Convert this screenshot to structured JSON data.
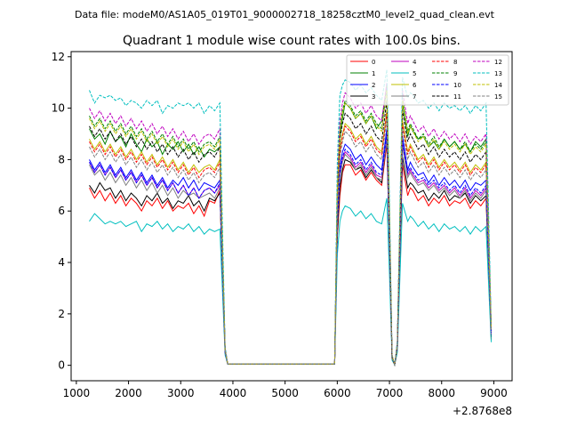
{
  "figure": {
    "suptitle": "Data file: modeM0/AS1A05_019T01_9000002718_18258cztM0_level2_quad_clean.evt",
    "title": "Quadrant 1 module wise count rates with 100.0s bins."
  },
  "chart_data": {
    "type": "line",
    "title": "Quadrant 1 module wise count rates with 100.0s bins.",
    "xlabel": "",
    "ylabel": "",
    "x_offset_label": "+2.8768e8",
    "xlim": [
      900,
      9350
    ],
    "ylim": [
      -0.6,
      12.2
    ],
    "xticks": [
      1000,
      2000,
      3000,
      4000,
      5000,
      6000,
      7000,
      8000,
      9000
    ],
    "yticks": [
      0,
      2,
      4,
      6,
      8,
      10,
      12
    ],
    "grid": false,
    "legend_position": "top-right",
    "x": [
      1250,
      1350,
      1450,
      1550,
      1650,
      1750,
      1850,
      1950,
      2050,
      2150,
      2250,
      2350,
      2450,
      2550,
      2650,
      2750,
      2850,
      2950,
      3050,
      3150,
      3250,
      3350,
      3450,
      3550,
      3650,
      3750,
      3800,
      3850,
      3900,
      3950,
      4000,
      5950,
      6000,
      6050,
      6100,
      6150,
      6250,
      6350,
      6450,
      6550,
      6650,
      6750,
      6850,
      6950,
      7000,
      7050,
      7100,
      7150,
      7250,
      7350,
      7400,
      7450,
      7550,
      7650,
      7750,
      7850,
      7950,
      8050,
      8150,
      8250,
      8350,
      8450,
      8550,
      8650,
      8750,
      8850,
      8950
    ],
    "series": [
      {
        "name": "0",
        "color": "#ff0000",
        "dash": "solid",
        "values": [
          6.9,
          6.5,
          6.8,
          6.4,
          6.7,
          6.3,
          6.6,
          6.2,
          6.5,
          6.3,
          6.0,
          6.4,
          6.2,
          6.5,
          6.1,
          6.4,
          6.0,
          6.2,
          6.1,
          6.3,
          5.9,
          6.2,
          5.8,
          6.4,
          6.3,
          6.8,
          3.5,
          0.5,
          0.05,
          0.05,
          0.05,
          0.05,
          5.0,
          6.6,
          7.5,
          7.8,
          7.8,
          7.4,
          7.6,
          7.2,
          7.5,
          7.2,
          7.0,
          8.6,
          4.5,
          0.3,
          0.02,
          0.6,
          7.8,
          6.6,
          6.9,
          6.8,
          6.4,
          6.6,
          6.2,
          6.5,
          6.3,
          6.6,
          6.2,
          6.4,
          6.3,
          6.5,
          6.1,
          6.4,
          6.2,
          6.5,
          1.0
        ]
      },
      {
        "name": "1",
        "color": "#008000",
        "dash": "solid",
        "values": [
          9.2,
          8.8,
          9.0,
          8.6,
          9.1,
          8.7,
          8.9,
          8.5,
          9.0,
          8.6,
          8.3,
          8.8,
          8.5,
          8.7,
          8.2,
          8.6,
          8.4,
          8.7,
          8.3,
          8.6,
          8.2,
          8.5,
          8.1,
          8.4,
          8.3,
          8.5,
          4.5,
          0.6,
          0.05,
          0.05,
          0.05,
          0.05,
          6.6,
          8.9,
          9.6,
          10.2,
          10.0,
          9.6,
          9.8,
          9.4,
          9.7,
          9.2,
          9.5,
          10.9,
          5.6,
          0.3,
          0.02,
          0.8,
          10.2,
          8.9,
          9.3,
          9.1,
          8.8,
          8.9,
          8.5,
          8.7,
          8.4,
          8.8,
          8.5,
          8.7,
          8.4,
          8.6,
          8.3,
          8.7,
          8.5,
          8.8,
          1.4
        ]
      },
      {
        "name": "2",
        "color": "#0000ff",
        "dash": "solid",
        "values": [
          8.0,
          7.6,
          7.9,
          7.5,
          7.8,
          7.4,
          7.7,
          7.3,
          7.6,
          7.2,
          7.5,
          7.1,
          7.4,
          7.0,
          7.3,
          6.9,
          7.2,
          7.0,
          7.3,
          6.9,
          7.2,
          6.8,
          7.1,
          7.0,
          6.9,
          7.2,
          3.8,
          0.5,
          0.05,
          0.05,
          0.05,
          0.05,
          5.8,
          7.7,
          8.3,
          8.6,
          8.4,
          8.0,
          8.2,
          7.8,
          8.1,
          7.8,
          7.6,
          9.2,
          4.8,
          0.3,
          0.02,
          0.7,
          8.9,
          7.6,
          7.9,
          7.7,
          7.4,
          7.5,
          7.1,
          7.4,
          7.0,
          7.3,
          7.0,
          7.2,
          6.9,
          7.2,
          6.8,
          7.1,
          7.0,
          7.2,
          1.2
        ]
      },
      {
        "name": "3",
        "color": "#000000",
        "dash": "solid",
        "values": [
          7.0,
          6.7,
          7.1,
          6.8,
          6.9,
          6.5,
          6.8,
          6.4,
          6.7,
          6.5,
          6.2,
          6.6,
          6.4,
          6.7,
          6.3,
          6.5,
          6.1,
          6.4,
          6.3,
          6.6,
          6.2,
          6.4,
          6.0,
          6.5,
          6.4,
          6.7,
          3.6,
          0.5,
          0.05,
          0.05,
          0.05,
          0.05,
          5.2,
          6.9,
          7.6,
          8.0,
          7.9,
          7.6,
          7.7,
          7.3,
          7.6,
          7.3,
          7.1,
          8.8,
          4.6,
          0.3,
          0.02,
          0.6,
          8.1,
          6.9,
          7.1,
          7.0,
          6.7,
          6.8,
          6.4,
          6.7,
          6.5,
          6.8,
          6.4,
          6.6,
          6.5,
          6.7,
          6.3,
          6.6,
          6.4,
          6.6,
          1.1
        ]
      },
      {
        "name": "4",
        "color": "#bf00bf",
        "dash": "solid",
        "values": [
          7.9,
          7.5,
          7.8,
          7.4,
          7.7,
          7.3,
          7.6,
          7.2,
          7.5,
          7.1,
          7.4,
          7.0,
          7.3,
          6.9,
          7.2,
          6.8,
          7.1,
          6.7,
          7.0,
          6.6,
          6.9,
          6.5,
          6.8,
          6.9,
          6.7,
          7.0,
          3.7,
          0.5,
          0.05,
          0.05,
          0.05,
          0.05,
          5.6,
          7.4,
          8.0,
          8.3,
          8.1,
          7.7,
          7.9,
          7.5,
          7.8,
          7.4,
          7.3,
          8.9,
          4.7,
          0.3,
          0.02,
          0.7,
          8.6,
          7.4,
          7.6,
          7.4,
          7.1,
          7.2,
          6.9,
          7.1,
          6.8,
          7.0,
          6.7,
          6.9,
          6.6,
          6.9,
          6.5,
          6.8,
          6.6,
          6.9,
          1.2
        ]
      },
      {
        "name": "5",
        "color": "#00bfbf",
        "dash": "solid",
        "values": [
          5.6,
          5.9,
          5.7,
          5.5,
          5.6,
          5.5,
          5.6,
          5.4,
          5.5,
          5.6,
          5.2,
          5.5,
          5.4,
          5.6,
          5.3,
          5.5,
          5.2,
          5.4,
          5.3,
          5.5,
          5.2,
          5.4,
          5.1,
          5.3,
          5.2,
          5.3,
          2.9,
          0.4,
          0.05,
          0.05,
          0.05,
          0.05,
          4.3,
          5.6,
          6.0,
          6.2,
          6.1,
          5.8,
          6.0,
          5.7,
          5.9,
          5.6,
          5.5,
          6.5,
          3.5,
          0.2,
          0.02,
          0.5,
          6.3,
          5.6,
          5.8,
          5.7,
          5.4,
          5.6,
          5.3,
          5.5,
          5.2,
          5.5,
          5.3,
          5.4,
          5.2,
          5.4,
          5.1,
          5.4,
          5.2,
          5.4,
          0.9
        ]
      },
      {
        "name": "6",
        "color": "#bfbf00",
        "dash": "solid",
        "values": [
          8.8,
          8.4,
          8.7,
          8.3,
          8.6,
          8.2,
          8.5,
          8.1,
          8.4,
          8.0,
          8.3,
          7.9,
          8.2,
          7.8,
          8.1,
          7.7,
          8.0,
          7.6,
          7.9,
          7.5,
          7.8,
          7.5,
          7.7,
          7.8,
          7.6,
          8.0,
          4.2,
          0.6,
          0.05,
          0.05,
          0.05,
          0.05,
          6.3,
          8.4,
          9.0,
          9.4,
          9.2,
          8.8,
          9.0,
          8.6,
          8.9,
          8.5,
          8.3,
          9.9,
          5.2,
          0.3,
          0.02,
          0.7,
          9.5,
          8.3,
          8.6,
          8.4,
          8.0,
          8.2,
          7.8,
          8.1,
          7.7,
          8.0,
          7.7,
          7.9,
          7.6,
          7.9,
          7.5,
          7.8,
          7.6,
          7.9,
          1.3
        ]
      },
      {
        "name": "7",
        "color": "#808080",
        "dash": "solid",
        "values": [
          7.8,
          7.4,
          7.6,
          7.2,
          7.5,
          7.1,
          7.4,
          7.0,
          7.3,
          6.9,
          7.2,
          6.8,
          7.1,
          6.7,
          7.0,
          6.6,
          6.9,
          6.5,
          6.8,
          6.6,
          6.7,
          6.5,
          6.6,
          6.7,
          6.5,
          6.9,
          3.6,
          0.5,
          0.05,
          0.05,
          0.05,
          0.05,
          5.5,
          7.3,
          7.9,
          8.2,
          8.0,
          7.6,
          7.8,
          7.4,
          7.7,
          7.3,
          7.2,
          8.8,
          4.6,
          0.3,
          0.02,
          0.7,
          8.5,
          7.3,
          7.5,
          7.3,
          7.0,
          7.1,
          6.8,
          7.0,
          6.7,
          6.9,
          6.6,
          6.8,
          6.5,
          6.8,
          6.4,
          6.7,
          6.5,
          6.8,
          1.2
        ]
      },
      {
        "name": "8",
        "color": "#ff0000",
        "dash": "dashed",
        "values": [
          8.7,
          8.3,
          8.6,
          8.2,
          8.5,
          8.1,
          8.4,
          8.0,
          8.3,
          7.9,
          8.2,
          7.8,
          8.1,
          7.7,
          8.0,
          7.6,
          7.9,
          7.5,
          7.8,
          7.4,
          7.7,
          7.3,
          7.6,
          7.7,
          7.5,
          7.9,
          4.1,
          0.6,
          0.05,
          0.05,
          0.05,
          0.05,
          6.2,
          8.3,
          8.9,
          9.3,
          9.1,
          8.7,
          8.9,
          8.5,
          8.8,
          8.4,
          8.2,
          9.8,
          5.1,
          0.3,
          0.02,
          0.7,
          9.4,
          8.2,
          8.5,
          8.3,
          7.9,
          8.1,
          7.7,
          8.0,
          7.6,
          7.9,
          7.6,
          7.8,
          7.5,
          7.8,
          7.4,
          7.7,
          7.5,
          7.8,
          1.3
        ]
      },
      {
        "name": "9",
        "color": "#008000",
        "dash": "dashed",
        "values": [
          9.7,
          9.3,
          9.6,
          9.2,
          9.5,
          9.1,
          9.4,
          9.0,
          9.3,
          8.9,
          9.2,
          8.8,
          9.1,
          8.7,
          9.0,
          8.6,
          8.9,
          8.5,
          8.8,
          8.4,
          8.7,
          8.3,
          8.6,
          8.7,
          8.5,
          8.9,
          4.6,
          0.6,
          0.05,
          0.05,
          0.05,
          0.05,
          6.9,
          9.2,
          9.9,
          10.3,
          10.1,
          9.7,
          9.9,
          9.5,
          9.8,
          9.4,
          9.2,
          10.8,
          5.7,
          0.4,
          0.02,
          0.8,
          10.4,
          9.1,
          9.4,
          9.2,
          8.8,
          9.0,
          8.6,
          8.9,
          8.5,
          8.8,
          8.5,
          8.7,
          8.4,
          8.7,
          8.3,
          8.6,
          8.4,
          8.7,
          1.4
        ]
      },
      {
        "name": "10",
        "color": "#0000ff",
        "dash": "dashed",
        "values": [
          7.9,
          7.5,
          7.8,
          7.4,
          7.7,
          7.3,
          7.6,
          7.2,
          7.5,
          7.1,
          7.4,
          7.0,
          7.3,
          6.9,
          7.2,
          6.8,
          7.1,
          6.7,
          7.0,
          6.6,
          6.9,
          6.5,
          6.8,
          6.9,
          6.7,
          7.1,
          3.7,
          0.5,
          0.05,
          0.05,
          0.05,
          0.05,
          5.6,
          7.5,
          8.1,
          8.4,
          8.2,
          7.8,
          8.0,
          7.6,
          7.9,
          7.5,
          7.4,
          9.0,
          4.7,
          0.3,
          0.02,
          0.7,
          8.7,
          7.5,
          7.7,
          7.5,
          7.2,
          7.3,
          7.0,
          7.2,
          6.9,
          7.1,
          6.8,
          7.0,
          6.7,
          7.0,
          6.6,
          6.9,
          6.7,
          7.0,
          1.2
        ]
      },
      {
        "name": "11",
        "color": "#000000",
        "dash": "dashed",
        "values": [
          9.3,
          8.9,
          9.2,
          8.8,
          9.1,
          8.7,
          9.0,
          8.6,
          8.9,
          8.5,
          8.8,
          8.4,
          8.7,
          8.3,
          8.6,
          8.2,
          8.5,
          8.1,
          8.4,
          8.0,
          8.3,
          7.9,
          8.2,
          8.3,
          8.1,
          8.5,
          4.4,
          0.6,
          0.05,
          0.05,
          0.05,
          0.05,
          6.6,
          8.8,
          9.4,
          9.8,
          9.6,
          9.2,
          9.4,
          9.0,
          9.3,
          8.9,
          8.7,
          10.3,
          5.4,
          0.3,
          0.02,
          0.8,
          9.9,
          8.7,
          9.0,
          8.8,
          8.4,
          8.6,
          8.2,
          8.5,
          8.1,
          8.4,
          8.1,
          8.3,
          8.0,
          8.3,
          7.9,
          8.2,
          8.0,
          8.3,
          1.4
        ]
      },
      {
        "name": "12",
        "color": "#bf00bf",
        "dash": "dashed",
        "values": [
          10.0,
          9.6,
          9.9,
          9.5,
          9.8,
          9.4,
          9.7,
          9.3,
          9.6,
          9.2,
          9.5,
          9.1,
          9.4,
          9.0,
          9.3,
          8.9,
          9.2,
          8.8,
          9.1,
          8.7,
          9.0,
          8.6,
          8.9,
          9.0,
          8.8,
          9.2,
          4.8,
          0.7,
          0.05,
          0.05,
          0.05,
          0.05,
          7.1,
          9.5,
          10.2,
          10.6,
          10.4,
          10.0,
          10.2,
          9.8,
          10.1,
          9.7,
          9.5,
          11.0,
          5.9,
          0.4,
          0.02,
          0.9,
          10.7,
          9.4,
          9.7,
          9.5,
          9.1,
          9.3,
          8.9,
          9.2,
          8.8,
          9.1,
          8.8,
          9.0,
          8.7,
          9.0,
          8.6,
          8.9,
          8.7,
          9.0,
          1.5
        ]
      },
      {
        "name": "13",
        "color": "#00bfbf",
        "dash": "dashed",
        "values": [
          10.7,
          10.2,
          10.5,
          10.4,
          10.5,
          10.3,
          10.4,
          10.1,
          10.3,
          10.2,
          10.0,
          10.3,
          10.1,
          10.3,
          9.8,
          10.1,
          10.0,
          10.2,
          10.1,
          10.2,
          10.0,
          10.2,
          9.8,
          10.1,
          9.9,
          10.2,
          5.4,
          0.7,
          0.05,
          0.05,
          0.05,
          0.05,
          7.9,
          10.5,
          10.9,
          11.1,
          11.0,
          10.7,
          10.9,
          10.6,
          10.8,
          10.5,
          10.3,
          11.5,
          6.3,
          0.4,
          0.02,
          0.9,
          11.2,
          10.4,
          10.6,
          10.5,
          10.2,
          10.3,
          10.0,
          10.2,
          9.9,
          10.2,
          10.0,
          10.1,
          9.9,
          10.1,
          9.8,
          10.1,
          9.9,
          10.2,
          1.6
        ]
      },
      {
        "name": "14",
        "color": "#bfbf00",
        "dash": "dashed",
        "values": [
          9.6,
          9.2,
          9.5,
          9.1,
          9.4,
          9.0,
          9.3,
          8.9,
          9.2,
          8.8,
          9.1,
          8.7,
          9.0,
          8.6,
          8.9,
          8.5,
          8.8,
          8.4,
          8.7,
          8.3,
          8.6,
          8.2,
          8.5,
          8.6,
          8.4,
          8.8,
          4.6,
          0.6,
          0.05,
          0.05,
          0.05,
          0.05,
          6.8,
          9.1,
          9.8,
          10.2,
          10.0,
          9.6,
          9.8,
          9.4,
          9.7,
          9.3,
          9.1,
          10.7,
          5.6,
          0.4,
          0.02,
          0.8,
          10.3,
          9.0,
          9.3,
          9.1,
          8.7,
          8.9,
          8.5,
          8.8,
          8.4,
          8.7,
          8.4,
          8.6,
          8.3,
          8.6,
          8.2,
          8.5,
          8.3,
          8.6,
          1.4
        ]
      },
      {
        "name": "15",
        "color": "#808080",
        "dash": "dashed",
        "values": [
          8.5,
          8.1,
          8.4,
          8.0,
          8.3,
          7.9,
          8.2,
          7.8,
          8.1,
          7.7,
          8.0,
          7.6,
          7.9,
          7.5,
          7.8,
          7.4,
          7.7,
          7.3,
          7.6,
          7.2,
          7.5,
          7.1,
          7.4,
          7.5,
          7.3,
          7.7,
          4.0,
          0.6,
          0.05,
          0.05,
          0.05,
          0.05,
          6.1,
          8.1,
          8.7,
          9.1,
          8.9,
          8.5,
          8.7,
          8.3,
          8.6,
          8.2,
          8.0,
          9.6,
          5.0,
          0.3,
          0.02,
          0.7,
          9.2,
          8.0,
          8.3,
          8.1,
          7.7,
          7.9,
          7.5,
          7.8,
          7.4,
          7.7,
          7.4,
          7.6,
          7.3,
          7.6,
          7.2,
          7.5,
          7.3,
          7.6,
          1.3
        ]
      }
    ]
  }
}
